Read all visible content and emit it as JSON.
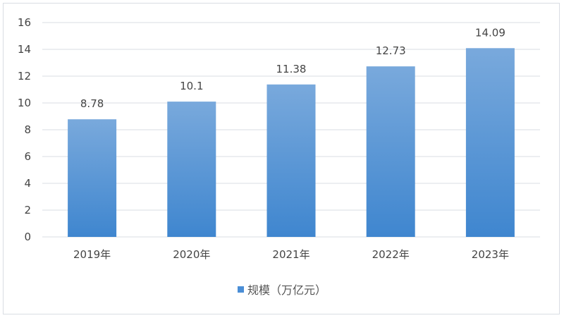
{
  "chart_data": {
    "type": "bar",
    "categories": [
      "2019年",
      "2020年",
      "2021年",
      "2022年",
      "2023年"
    ],
    "series": [
      {
        "name": "规模（万亿元）",
        "values": [
          8.78,
          10.1,
          11.38,
          12.73,
          14.09
        ]
      }
    ],
    "data_labels": [
      "8.78",
      "10.1",
      "11.38",
      "12.73",
      "14.09"
    ],
    "title": "",
    "xlabel": "",
    "ylabel": "",
    "ylim": [
      0,
      16
    ],
    "yticks": [
      0,
      2,
      4,
      6,
      8,
      10,
      12,
      14,
      16
    ],
    "grid": true,
    "legend": "bottom",
    "colors": {
      "bar_top": "#79a9dc",
      "bar_bottom": "#3f86cf",
      "legend": "#4a8ed6",
      "grid": "#d9dde3"
    }
  }
}
